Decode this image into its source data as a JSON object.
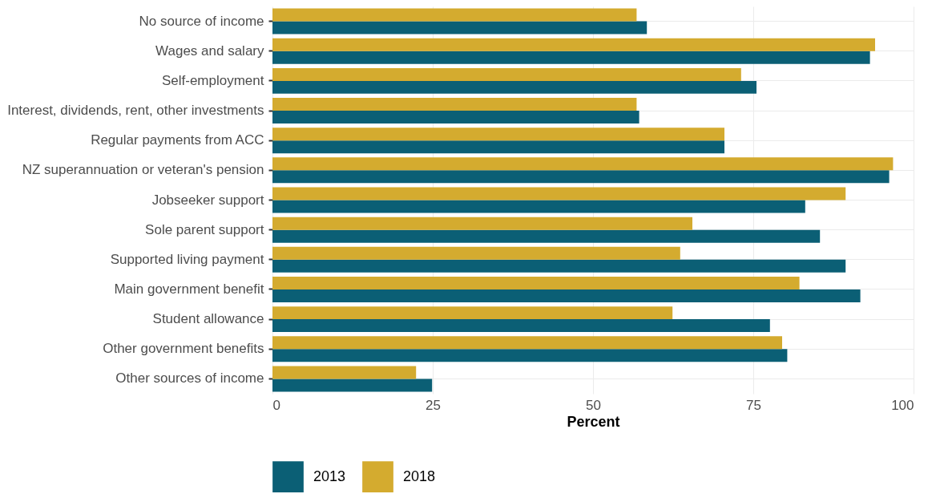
{
  "chart_data": {
    "type": "bar",
    "orientation": "horizontal",
    "xlabel": "Percent",
    "categories": [
      "No source of income",
      "Wages and salary",
      "Self-employment",
      "Interest, dividends, rent, other investments",
      "Regular payments from ACC",
      "NZ superannuation or veteran's pension",
      "Jobseeker support",
      "Sole parent support",
      "Supported living payment",
      "Main government benefit",
      "Student allowance",
      "Other government benefits",
      "Other sources of income"
    ],
    "series": [
      {
        "name": "2013",
        "color": "#0b5f75",
        "values": [
          58.4,
          93.2,
          75.5,
          57.2,
          70.5,
          96.2,
          83.1,
          85.4,
          89.4,
          91.7,
          77.6,
          80.3,
          24.9
        ]
      },
      {
        "name": "2018",
        "color": "#d4ab2f",
        "values": [
          56.8,
          94.0,
          73.1,
          56.8,
          70.5,
          96.8,
          89.4,
          65.5,
          63.6,
          82.2,
          62.4,
          79.5,
          22.4
        ]
      }
    ],
    "xlim": [
      0,
      100
    ],
    "xticks": [
      0,
      25,
      50,
      75,
      100
    ],
    "grid": true,
    "legend": "bottom"
  }
}
